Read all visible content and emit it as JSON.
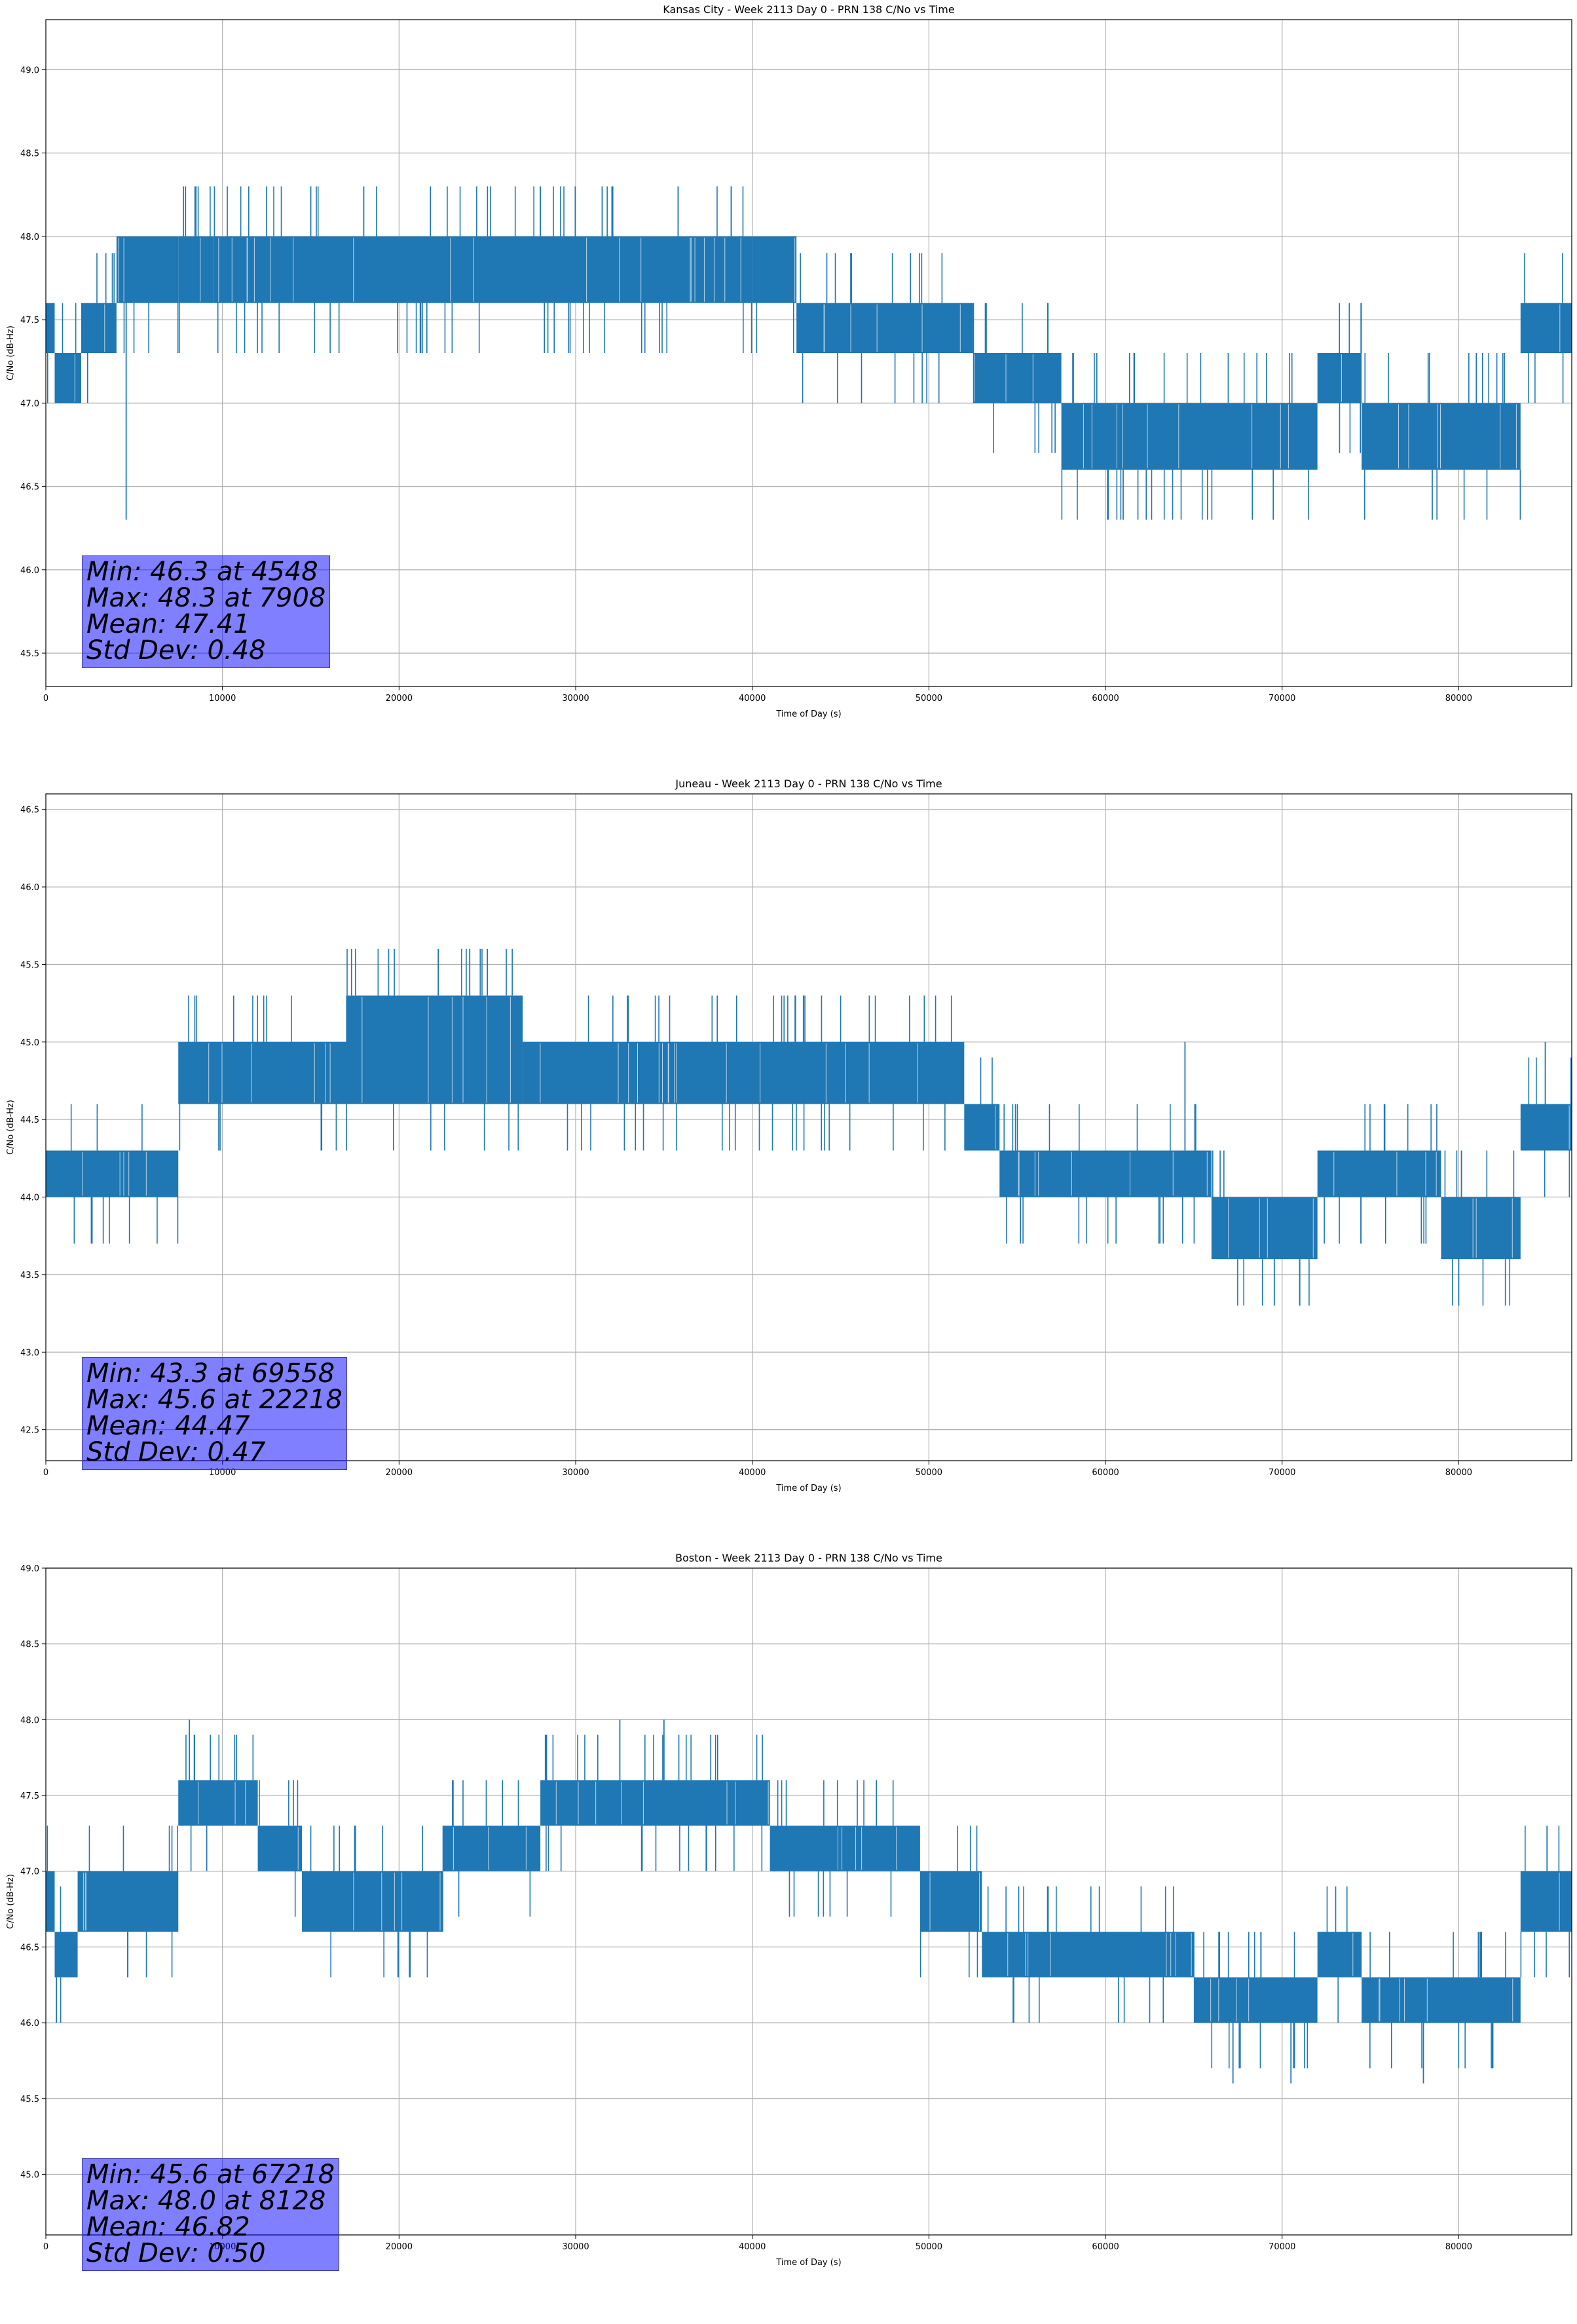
{
  "chart_data": [
    {
      "type": "line",
      "title": "Kansas City - Week 2113 Day 0 - PRN 138 C/No vs Time",
      "xlabel": "Time of Day (s)",
      "ylabel": "C/No (dB-Hz)",
      "xlim": [
        0,
        86400
      ],
      "ylim": [
        45.3,
        49.3
      ],
      "xticks": [
        0,
        10000,
        20000,
        30000,
        40000,
        50000,
        60000,
        70000,
        80000
      ],
      "yticks": [
        "45.5",
        "46.0",
        "46.5",
        "47.0",
        "47.5",
        "48.0",
        "48.5",
        "49.0"
      ],
      "grid": true,
      "series_color": "#1f77b4",
      "segments": [
        {
          "x0": 0,
          "x1": 500,
          "lo": 47.3,
          "hi": 47.6
        },
        {
          "x0": 500,
          "x1": 2000,
          "lo": 47.0,
          "hi": 47.3
        },
        {
          "x0": 2000,
          "x1": 4000,
          "lo": 47.3,
          "hi": 47.6
        },
        {
          "x0": 4000,
          "x1": 7500,
          "lo": 47.6,
          "hi": 48.0
        },
        {
          "x0": 7500,
          "x1": 9500,
          "lo": 47.6,
          "hi": 48.0
        },
        {
          "x0": 9500,
          "x1": 40000,
          "lo": 47.6,
          "hi": 48.0
        },
        {
          "x0": 40000,
          "x1": 42500,
          "lo": 47.6,
          "hi": 48.0
        },
        {
          "x0": 42500,
          "x1": 52500,
          "lo": 47.3,
          "hi": 47.6
        },
        {
          "x0": 52500,
          "x1": 57500,
          "lo": 47.0,
          "hi": 47.3
        },
        {
          "x0": 57500,
          "x1": 72000,
          "lo": 46.6,
          "hi": 47.0
        },
        {
          "x0": 72000,
          "x1": 74500,
          "lo": 47.0,
          "hi": 47.3
        },
        {
          "x0": 74500,
          "x1": 83500,
          "lo": 46.6,
          "hi": 47.0
        },
        {
          "x0": 83500,
          "x1": 86400,
          "lo": 47.3,
          "hi": 47.6
        }
      ],
      "spikes": [
        {
          "x": 4548,
          "y": 46.3
        },
        {
          "x": 7908,
          "y": 48.3
        },
        {
          "x": 8500,
          "y": 48.3
        },
        {
          "x": 15000,
          "y": 48.3
        },
        {
          "x": 18000,
          "y": 48.3
        },
        {
          "x": 28000,
          "y": 48.3
        },
        {
          "x": 31500,
          "y": 48.3
        },
        {
          "x": 35800,
          "y": 48.3
        },
        {
          "x": 61000,
          "y": 46.3
        },
        {
          "x": 69500,
          "y": 46.3
        },
        {
          "x": 78500,
          "y": 46.3
        }
      ],
      "stats": {
        "min": "Min: 46.3 at 4548",
        "max": "Max: 48.3 at 7908",
        "mean": "Mean: 47.41",
        "std": "Std Dev: 0.48"
      }
    },
    {
      "type": "line",
      "title": "Juneau - Week 2113 Day 0 - PRN 138 C/No vs Time",
      "xlabel": "Time of Day (s)",
      "ylabel": "C/No (dB-Hz)",
      "xlim": [
        0,
        86400
      ],
      "ylim": [
        42.3,
        46.6
      ],
      "xticks": [
        0,
        10000,
        20000,
        30000,
        40000,
        50000,
        60000,
        70000,
        80000
      ],
      "yticks": [
        "42.5",
        "43.0",
        "43.5",
        "44.0",
        "44.5",
        "45.0",
        "45.5",
        "46.0",
        "46.5"
      ],
      "grid": true,
      "series_color": "#1f77b4",
      "segments": [
        {
          "x0": 0,
          "x1": 7500,
          "lo": 44.0,
          "hi": 44.3
        },
        {
          "x0": 7500,
          "x1": 17000,
          "lo": 44.6,
          "hi": 45.0
        },
        {
          "x0": 17000,
          "x1": 27000,
          "lo": 44.6,
          "hi": 45.3
        },
        {
          "x0": 27000,
          "x1": 52000,
          "lo": 44.6,
          "hi": 45.0
        },
        {
          "x0": 52000,
          "x1": 54000,
          "lo": 44.3,
          "hi": 44.6
        },
        {
          "x0": 54000,
          "x1": 66000,
          "lo": 44.0,
          "hi": 44.3
        },
        {
          "x0": 66000,
          "x1": 72000,
          "lo": 43.6,
          "hi": 44.0
        },
        {
          "x0": 72000,
          "x1": 79000,
          "lo": 44.0,
          "hi": 44.3
        },
        {
          "x0": 79000,
          "x1": 83500,
          "lo": 43.6,
          "hi": 44.0
        },
        {
          "x0": 83500,
          "x1": 86400,
          "lo": 44.3,
          "hi": 44.6
        }
      ],
      "spikes": [
        {
          "x": 22218,
          "y": 45.6
        },
        {
          "x": 24000,
          "y": 45.6
        },
        {
          "x": 25000,
          "y": 45.6
        },
        {
          "x": 69558,
          "y": 43.3
        },
        {
          "x": 71000,
          "y": 43.3
        },
        {
          "x": 80000,
          "y": 43.3
        },
        {
          "x": 64500,
          "y": 45.0
        },
        {
          "x": 84900,
          "y": 45.0
        }
      ],
      "stats": {
        "min": "Min: 43.3 at 69558",
        "max": "Max: 45.6 at 22218",
        "mean": "Mean: 44.47",
        "std": "Std Dev: 0.47"
      }
    },
    {
      "type": "line",
      "title": "Boston - Week 2113 Day 0 - PRN 138 C/No vs Time",
      "xlabel": "Time of Day (s)",
      "ylabel": "C/No (dB-Hz)",
      "xlim": [
        0,
        86400
      ],
      "ylim": [
        44.6,
        49.0
      ],
      "xticks": [
        0,
        10000,
        20000,
        30000,
        40000,
        50000,
        60000,
        70000,
        80000
      ],
      "yticks": [
        "45.0",
        "45.5",
        "46.0",
        "46.5",
        "47.0",
        "47.5",
        "48.0",
        "48.5",
        "49.0"
      ],
      "grid": true,
      "series_color": "#1f77b4",
      "segments": [
        {
          "x0": 0,
          "x1": 500,
          "lo": 46.6,
          "hi": 47.0
        },
        {
          "x0": 500,
          "x1": 1800,
          "lo": 46.3,
          "hi": 46.6
        },
        {
          "x0": 1800,
          "x1": 7500,
          "lo": 46.6,
          "hi": 47.0
        },
        {
          "x0": 7500,
          "x1": 12000,
          "lo": 47.3,
          "hi": 47.6
        },
        {
          "x0": 12000,
          "x1": 14500,
          "lo": 47.0,
          "hi": 47.3
        },
        {
          "x0": 14500,
          "x1": 22500,
          "lo": 46.6,
          "hi": 47.0
        },
        {
          "x0": 22500,
          "x1": 28000,
          "lo": 47.0,
          "hi": 47.3
        },
        {
          "x0": 28000,
          "x1": 41000,
          "lo": 47.3,
          "hi": 47.6
        },
        {
          "x0": 41000,
          "x1": 49500,
          "lo": 47.0,
          "hi": 47.3
        },
        {
          "x0": 49500,
          "x1": 53000,
          "lo": 46.6,
          "hi": 47.0
        },
        {
          "x0": 53000,
          "x1": 65000,
          "lo": 46.3,
          "hi": 46.6
        },
        {
          "x0": 65000,
          "x1": 72000,
          "lo": 46.0,
          "hi": 46.3
        },
        {
          "x0": 72000,
          "x1": 74500,
          "lo": 46.3,
          "hi": 46.6
        },
        {
          "x0": 74500,
          "x1": 83500,
          "lo": 46.0,
          "hi": 46.3
        },
        {
          "x0": 83500,
          "x1": 86400,
          "lo": 46.6,
          "hi": 47.0
        }
      ],
      "spikes": [
        {
          "x": 600,
          "y": 46.0
        },
        {
          "x": 8128,
          "y": 48.0
        },
        {
          "x": 32500,
          "y": 48.0
        },
        {
          "x": 35000,
          "y": 48.0
        },
        {
          "x": 67218,
          "y": 45.6
        },
        {
          "x": 70500,
          "y": 45.6
        },
        {
          "x": 78000,
          "y": 45.6
        },
        {
          "x": 85000,
          "y": 47.3
        }
      ],
      "stats": {
        "min": "Min: 45.6 at 67218",
        "max": "Max: 48.0 at 8128",
        "mean": "Mean: 46.82",
        "std": "Std Dev: 0.50"
      }
    }
  ]
}
